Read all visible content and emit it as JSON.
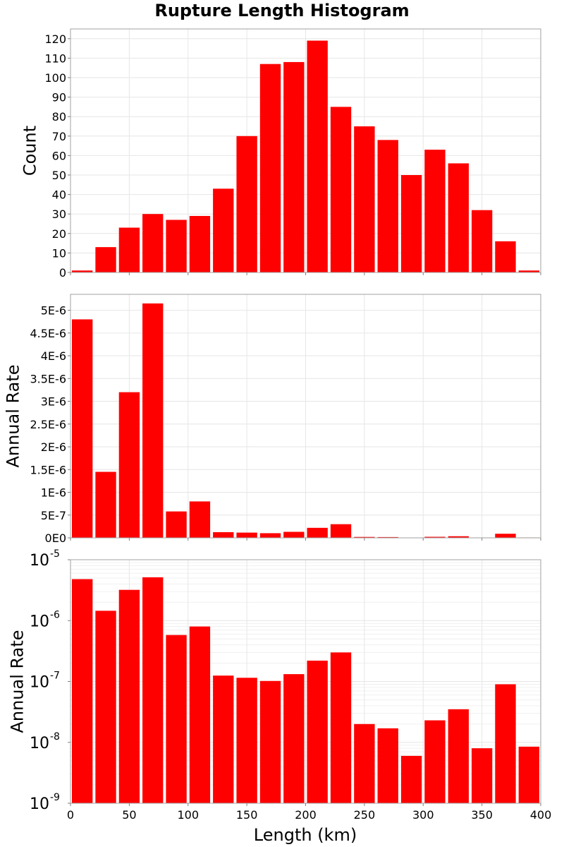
{
  "chart_data": {
    "title": "Rupture Length Histogram",
    "xlabel": "Length (km)",
    "xlim": [
      0,
      400
    ],
    "x_ticks": [
      "0",
      "50",
      "100",
      "150",
      "200",
      "250",
      "300",
      "350",
      "400"
    ],
    "bin_width": 20,
    "bin_starts": [
      0,
      20,
      40,
      60,
      80,
      100,
      120,
      140,
      160,
      180,
      200,
      220,
      240,
      260,
      280,
      300,
      320,
      340,
      360,
      380
    ],
    "color": "#ff0000",
    "panels": [
      {
        "type": "bar",
        "scale": "linear",
        "ylabel": "Count",
        "ylim": [
          0,
          125
        ],
        "y_ticks": [
          {
            "value": 0,
            "label": "0"
          },
          {
            "value": 10,
            "label": "10"
          },
          {
            "value": 20,
            "label": "20"
          },
          {
            "value": 30,
            "label": "30"
          },
          {
            "value": 40,
            "label": "40"
          },
          {
            "value": 50,
            "label": "50"
          },
          {
            "value": 60,
            "label": "60"
          },
          {
            "value": 70,
            "label": "70"
          },
          {
            "value": 80,
            "label": "80"
          },
          {
            "value": 90,
            "label": "90"
          },
          {
            "value": 100,
            "label": "100"
          },
          {
            "value": 110,
            "label": "110"
          },
          {
            "value": 120,
            "label": "120"
          }
        ],
        "values": [
          1,
          13,
          23,
          30,
          27,
          29,
          43,
          70,
          107,
          108,
          119,
          85,
          75,
          68,
          50,
          63,
          56,
          32,
          16,
          1
        ]
      },
      {
        "type": "bar",
        "scale": "linear",
        "ylabel": "Annual Rate",
        "ylim": [
          0,
          5.35e-06
        ],
        "y_ticks": [
          {
            "value": 0,
            "label": "0E0"
          },
          {
            "value": 5e-07,
            "label": "5E-7"
          },
          {
            "value": 1e-06,
            "label": "1E-6"
          },
          {
            "value": 1.5e-06,
            "label": "1.5E-6"
          },
          {
            "value": 2e-06,
            "label": "2E-6"
          },
          {
            "value": 2.5e-06,
            "label": "2.5E-6"
          },
          {
            "value": 3e-06,
            "label": "3E-6"
          },
          {
            "value": 3.5e-06,
            "label": "3.5E-6"
          },
          {
            "value": 4e-06,
            "label": "4E-6"
          },
          {
            "value": 4.5e-06,
            "label": "4.5E-6"
          },
          {
            "value": 5e-06,
            "label": "5E-6"
          }
        ],
        "values": [
          4.8e-06,
          1.45e-06,
          3.2e-06,
          5.15e-06,
          5.8e-07,
          8e-07,
          1.25e-07,
          1.15e-07,
          1.02e-07,
          1.32e-07,
          2.2e-07,
          3e-07,
          2e-08,
          1.7e-08,
          6e-09,
          2.3e-08,
          3.5e-08,
          8e-09,
          9e-08,
          8.5e-09
        ]
      },
      {
        "type": "bar",
        "scale": "log",
        "ylabel": "Annual Rate",
        "ylim": [
          1e-09,
          1e-05
        ],
        "y_ticks": [
          {
            "value": 1e-09,
            "base": "10",
            "exp": "-9"
          },
          {
            "value": 1e-08,
            "base": "10",
            "exp": "-8"
          },
          {
            "value": 1e-07,
            "base": "10",
            "exp": "-7"
          },
          {
            "value": 1e-06,
            "base": "10",
            "exp": "-6"
          },
          {
            "value": 1e-05,
            "base": "10",
            "exp": "-5"
          }
        ],
        "values": [
          4.8e-06,
          1.45e-06,
          3.2e-06,
          5.15e-06,
          5.8e-07,
          8e-07,
          1.25e-07,
          1.15e-07,
          1.02e-07,
          1.32e-07,
          2.2e-07,
          3e-07,
          2e-08,
          1.7e-08,
          6e-09,
          2.3e-08,
          3.5e-08,
          8e-09,
          9e-08,
          8.5e-09
        ]
      }
    ]
  }
}
